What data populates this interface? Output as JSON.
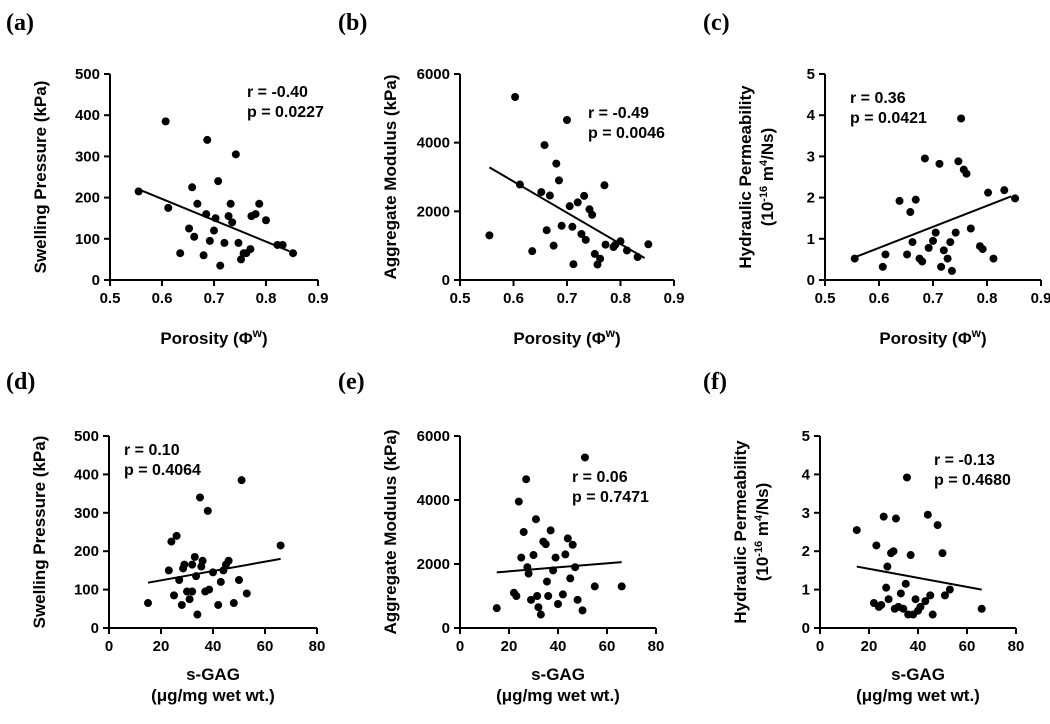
{
  "chart_data": [
    {
      "type": "scatter",
      "panel_label": "(a)",
      "title": "",
      "xlabel": [
        "Porosity (Φ",
        "w",
        ")"
      ],
      "ylabel": [
        "Swelling Pressure (kPa)"
      ],
      "xlim": [
        0.5,
        0.9
      ],
      "ylim": [
        0,
        500
      ],
      "xticks": [
        0.5,
        0.6,
        0.7,
        0.8,
        0.9
      ],
      "xtick_labels": [
        "0.5",
        "0.6",
        "0.7",
        "0.8",
        "0.9"
      ],
      "yticks": [
        0,
        100,
        200,
        300,
        400,
        500
      ],
      "ytick_labels": [
        "0",
        "100",
        "200",
        "300",
        "400",
        "500"
      ],
      "stats": [
        "r = -0.40",
        "p = 0.0227"
      ],
      "stats_position": "top-right",
      "fit_line": [
        [
          0.555,
          220
        ],
        [
          0.845,
          70
        ]
      ],
      "x": [
        0.555,
        0.607,
        0.612,
        0.635,
        0.652,
        0.658,
        0.662,
        0.668,
        0.68,
        0.685,
        0.687,
        0.692,
        0.7,
        0.703,
        0.708,
        0.712,
        0.72,
        0.728,
        0.732,
        0.735,
        0.742,
        0.747,
        0.752,
        0.757,
        0.762,
        0.77,
        0.772,
        0.78,
        0.787,
        0.8,
        0.822,
        0.832,
        0.852
      ],
      "y": [
        215,
        385,
        175,
        65,
        125,
        225,
        105,
        185,
        60,
        160,
        340,
        95,
        120,
        150,
        240,
        35,
        90,
        155,
        185,
        140,
        305,
        90,
        50,
        65,
        65,
        75,
        155,
        160,
        185,
        145,
        85,
        85,
        65
      ]
    },
    {
      "type": "scatter",
      "panel_label": "(b)",
      "title": "",
      "xlabel": [
        "Porosity (Φ",
        "w",
        ")"
      ],
      "ylabel": [
        "Aggregate Modulus (kPa)"
      ],
      "xlim": [
        0.5,
        0.9
      ],
      "ylim": [
        0,
        6000
      ],
      "xticks": [
        0.5,
        0.6,
        0.7,
        0.8,
        0.9
      ],
      "xtick_labels": [
        "0.5",
        "0.6",
        "0.7",
        "0.8",
        "0.9"
      ],
      "yticks": [
        0,
        2000,
        4000,
        6000
      ],
      "ytick_labels": [
        "0",
        "2000",
        "4000",
        "6000"
      ],
      "stats": [
        "r = -0.49",
        "p = 0.0046"
      ],
      "stats_position": "top-right",
      "fit_line": [
        [
          0.555,
          3280
        ],
        [
          0.845,
          640
        ]
      ],
      "x": [
        0.555,
        0.603,
        0.612,
        0.635,
        0.652,
        0.658,
        0.662,
        0.668,
        0.675,
        0.68,
        0.685,
        0.69,
        0.7,
        0.705,
        0.71,
        0.712,
        0.72,
        0.727,
        0.732,
        0.735,
        0.742,
        0.747,
        0.752,
        0.757,
        0.762,
        0.77,
        0.772,
        0.787,
        0.79,
        0.8,
        0.812,
        0.832,
        0.852
      ],
      "y": [
        1300,
        5330,
        2780,
        840,
        2560,
        3930,
        1450,
        2460,
        1000,
        3390,
        2900,
        1580,
        4660,
        2150,
        1550,
        460,
        2260,
        1340,
        2450,
        1170,
        2060,
        1900,
        760,
        450,
        620,
        2760,
        1030,
        960,
        1020,
        1130,
        860,
        670,
        1040
      ]
    },
    {
      "type": "scatter",
      "panel_label": "(c)",
      "title": "",
      "xlabel": [
        "Porosity (Φ",
        "w",
        ")"
      ],
      "ylabel": [
        "Hydraulic Permeability",
        "(10",
        "-16",
        " m",
        "4",
        "/Ns)"
      ],
      "xlim": [
        0.5,
        0.9
      ],
      "ylim": [
        0,
        5
      ],
      "xticks": [
        0.5,
        0.6,
        0.7,
        0.8,
        0.9
      ],
      "xtick_labels": [
        "0.5",
        "0.6",
        "0.7",
        "0.8",
        "0.9"
      ],
      "yticks": [
        0,
        1,
        2,
        3,
        4,
        5
      ],
      "ytick_labels": [
        "0",
        "1",
        "2",
        "3",
        "4",
        "5"
      ],
      "stats": [
        "r = 0.36",
        "p = 0.0421"
      ],
      "stats_position": "top-left",
      "fit_line": [
        [
          0.555,
          0.55
        ],
        [
          0.845,
          2.03
        ]
      ],
      "x": [
        0.555,
        0.607,
        0.612,
        0.638,
        0.652,
        0.658,
        0.662,
        0.668,
        0.675,
        0.68,
        0.685,
        0.692,
        0.7,
        0.705,
        0.712,
        0.715,
        0.72,
        0.727,
        0.732,
        0.735,
        0.742,
        0.747,
        0.752,
        0.757,
        0.762,
        0.77,
        0.787,
        0.792,
        0.802,
        0.812,
        0.832,
        0.852
      ],
      "y": [
        0.52,
        0.32,
        0.62,
        1.92,
        0.62,
        1.65,
        0.92,
        1.95,
        0.52,
        0.45,
        2.95,
        0.78,
        0.95,
        1.15,
        2.82,
        0.32,
        0.72,
        0.52,
        0.92,
        0.22,
        1.15,
        2.88,
        3.92,
        2.68,
        2.58,
        1.25,
        0.82,
        0.75,
        2.12,
        0.52,
        2.18,
        1.98
      ]
    },
    {
      "type": "scatter",
      "panel_label": "(d)",
      "title": "",
      "xlabel": [
        "s-GAG",
        "(μg/mg wet wt.)"
      ],
      "ylabel": [
        "Swelling Pressure (kPa)"
      ],
      "xlim": [
        0,
        80
      ],
      "ylim": [
        0,
        500
      ],
      "xticks": [
        0,
        20,
        40,
        60,
        80
      ],
      "xtick_labels": [
        "0",
        "20",
        "40",
        "60",
        "80"
      ],
      "yticks": [
        0,
        100,
        200,
        300,
        400,
        500
      ],
      "ytick_labels": [
        "0",
        "100",
        "200",
        "300",
        "400",
        "500"
      ],
      "stats": [
        "r = 0.10",
        "p = 0.4064"
      ],
      "stats_position": "top-left",
      "fit_line": [
        [
          15,
          118
        ],
        [
          66,
          180
        ]
      ],
      "x": [
        15,
        23,
        24,
        25,
        26,
        27,
        28,
        28.5,
        29,
        30,
        31,
        32,
        32,
        33,
        33.5,
        34,
        35,
        35.5,
        36,
        37,
        38,
        38.5,
        40,
        42,
        43,
        44,
        45,
        46,
        48,
        50,
        51,
        53,
        66
      ],
      "y": [
        65,
        150,
        225,
        85,
        240,
        125,
        60,
        155,
        165,
        95,
        75,
        165,
        95,
        185,
        135,
        35,
        340,
        160,
        175,
        95,
        305,
        100,
        145,
        60,
        120,
        150,
        165,
        175,
        65,
        125,
        385,
        90,
        215
      ]
    },
    {
      "type": "scatter",
      "panel_label": "(e)",
      "title": "",
      "xlabel": [
        "s-GAG",
        "(μg/mg wet wt.)"
      ],
      "ylabel": [
        "Aggregate Modulus (kPa)"
      ],
      "xlim": [
        0,
        80
      ],
      "ylim": [
        0,
        6000
      ],
      "xticks": [
        0,
        20,
        40,
        60,
        80
      ],
      "xtick_labels": [
        "0",
        "20",
        "40",
        "60",
        "80"
      ],
      "yticks": [
        0,
        2000,
        4000,
        6000
      ],
      "ytick_labels": [
        "0",
        "2000",
        "4000",
        "6000"
      ],
      "stats": [
        "r = 0.06",
        "p = 0.7471"
      ],
      "stats_position": "top-right",
      "fit_line": [
        [
          15,
          1740
        ],
        [
          66,
          2060
        ]
      ],
      "x": [
        15,
        22,
        23,
        24,
        25,
        26,
        27,
        27.5,
        28,
        29,
        30,
        31,
        31.5,
        32,
        33,
        34,
        35,
        35.5,
        36,
        37,
        38,
        39,
        40,
        42,
        43,
        44,
        45,
        46,
        47,
        48,
        50,
        51,
        55,
        66
      ],
      "y": [
        620,
        1100,
        1000,
        3950,
        2200,
        3000,
        4650,
        1900,
        1700,
        880,
        2280,
        3400,
        1000,
        650,
        420,
        2700,
        2620,
        1450,
        1000,
        3050,
        1800,
        2200,
        750,
        1050,
        2300,
        2800,
        1550,
        2600,
        1900,
        880,
        550,
        5330,
        1300,
        1300
      ]
    },
    {
      "type": "scatter",
      "panel_label": "(f)",
      "title": "",
      "xlabel": [
        "s-GAG",
        "(μg/mg wet wt.)"
      ],
      "ylabel": [
        "Hydraulic Permeability",
        "(10",
        "-16",
        " m",
        "4",
        "/Ns)"
      ],
      "xlim": [
        0,
        80
      ],
      "ylim": [
        0,
        5
      ],
      "xticks": [
        0,
        20,
        40,
        60,
        80
      ],
      "xtick_labels": [
        "0",
        "20",
        "40",
        "60",
        "80"
      ],
      "yticks": [
        0,
        1,
        2,
        3,
        4,
        5
      ],
      "ytick_labels": [
        "0",
        "1",
        "2",
        "3",
        "4",
        "5"
      ],
      "stats": [
        "r = -0.13",
        "p = 0.4680"
      ],
      "stats_position": "top-right",
      "fit_line": [
        [
          15,
          1.6
        ],
        [
          66,
          1.0
        ]
      ],
      "x": [
        15,
        22,
        23,
        24,
        25,
        26,
        27,
        27.5,
        28,
        29,
        30,
        30.5,
        31,
        32,
        33,
        34,
        35,
        35.5,
        36,
        37,
        38,
        39,
        40,
        41,
        43,
        44,
        45,
        46,
        48,
        50,
        51,
        53,
        66
      ],
      "y": [
        2.55,
        0.65,
        2.15,
        0.55,
        0.6,
        2.9,
        1.05,
        1.6,
        0.75,
        1.95,
        2.0,
        0.5,
        2.85,
        0.55,
        0.9,
        0.5,
        1.15,
        3.92,
        0.35,
        1.9,
        0.35,
        0.75,
        0.45,
        0.55,
        0.7,
        2.95,
        0.85,
        0.35,
        2.68,
        1.95,
        0.85,
        1.0,
        0.5
      ]
    }
  ]
}
